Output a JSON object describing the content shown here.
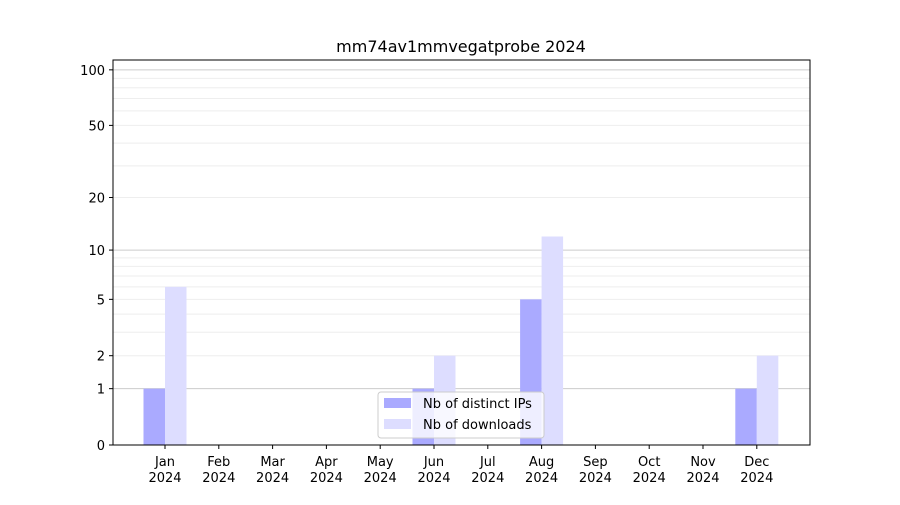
{
  "chart_data": {
    "type": "bar",
    "title": "mm74av1mmvegatprobe 2024",
    "xlabel": "",
    "ylabel": "",
    "yscale": "symlog (log(1+y))",
    "ylim": [
      0,
      113
    ],
    "yticks": [
      0,
      1,
      2,
      5,
      10,
      20,
      50,
      100
    ],
    "grid": true,
    "legend_position": "bottom-center",
    "categories": [
      "Jan\n2024",
      "Feb\n2024",
      "Mar\n2024",
      "Apr\n2024",
      "May\n2024",
      "Jun\n2024",
      "Jul\n2024",
      "Aug\n2024",
      "Sep\n2024",
      "Oct\n2024",
      "Nov\n2024",
      "Dec\n2024"
    ],
    "series": [
      {
        "name": "Nb of distinct IPs",
        "color": "#aaaaff",
        "values": [
          1,
          0,
          0,
          0,
          0,
          1,
          0,
          5,
          0,
          0,
          0,
          1
        ]
      },
      {
        "name": "Nb of downloads",
        "color": "#ddddff",
        "values": [
          6,
          0,
          0,
          0,
          0,
          2,
          0,
          12,
          0,
          0,
          0,
          2
        ]
      }
    ]
  }
}
